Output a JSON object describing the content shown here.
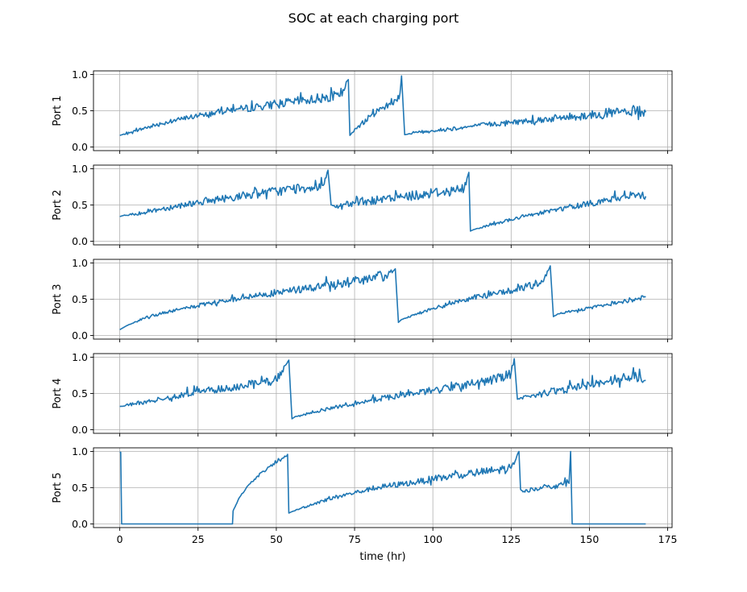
{
  "chart_data": {
    "type": "line",
    "title": "SOC at each charging port",
    "xlabel": "time (hr)",
    "xlim": [
      -8.4,
      176.4
    ],
    "xticks": [
      0,
      25,
      50,
      75,
      100,
      125,
      150,
      175
    ],
    "xtick_labels": [
      "0",
      "25",
      "50",
      "75",
      "100",
      "125",
      "150",
      "175"
    ],
    "shared_x": true,
    "grid": true,
    "line_color": "#1f77b4",
    "grid_color": "#b0b0b0",
    "panels": [
      {
        "ylabel": "Port 1",
        "ylim": [
          -0.05,
          1.05
        ],
        "yticks": [
          0.0,
          0.5,
          1.0
        ],
        "ytick_labels": [
          "0.0",
          "0.5",
          "1.0"
        ],
        "x": [
          0,
          5,
          10,
          15,
          20,
          25,
          30,
          35,
          40,
          45,
          50,
          55,
          60,
          65,
          70,
          72,
          73,
          73.5,
          76,
          80,
          84,
          88,
          89.5,
          90,
          91,
          95,
          100,
          105,
          110,
          115,
          120,
          125,
          130,
          135,
          140,
          145,
          150,
          155,
          160,
          165,
          168
        ],
        "y": [
          0.16,
          0.22,
          0.29,
          0.34,
          0.39,
          0.43,
          0.47,
          0.51,
          0.53,
          0.56,
          0.59,
          0.62,
          0.65,
          0.68,
          0.7,
          0.82,
          0.93,
          0.16,
          0.28,
          0.42,
          0.55,
          0.65,
          0.74,
          0.98,
          0.17,
          0.2,
          0.22,
          0.25,
          0.27,
          0.3,
          0.32,
          0.34,
          0.36,
          0.38,
          0.4,
          0.42,
          0.44,
          0.46,
          0.48,
          0.5,
          0.48
        ],
        "noise": [
          0,
          0.02,
          0.03,
          0.03,
          0.03,
          0.04,
          0.04,
          0.04,
          0.05,
          0.05,
          0.06,
          0.06,
          0.07,
          0.07,
          0.08,
          0.08,
          0,
          0,
          0.03,
          0.04,
          0.05,
          0.06,
          0.06,
          0,
          0,
          0.02,
          0.02,
          0.03,
          0.03,
          0.03,
          0.04,
          0.04,
          0.04,
          0.05,
          0.05,
          0.06,
          0.06,
          0.07,
          0.07,
          0.08,
          0.08
        ]
      },
      {
        "ylabel": "Port 2",
        "ylim": [
          -0.05,
          1.05
        ],
        "yticks": [
          0.0,
          0.5,
          1.0
        ],
        "ytick_labels": [
          "0.0",
          "0.5",
          "1.0"
        ],
        "x": [
          0,
          5,
          10,
          15,
          20,
          25,
          30,
          35,
          40,
          45,
          50,
          55,
          60,
          65,
          66.5,
          67.5,
          70,
          75,
          80,
          85,
          90,
          95,
          100,
          105,
          110,
          111.5,
          112,
          113,
          118,
          125,
          130,
          135,
          140,
          145,
          150,
          155,
          160,
          165,
          168
        ],
        "y": [
          0.34,
          0.38,
          0.42,
          0.46,
          0.5,
          0.54,
          0.57,
          0.6,
          0.63,
          0.66,
          0.69,
          0.72,
          0.74,
          0.77,
          0.98,
          0.5,
          0.48,
          0.52,
          0.55,
          0.58,
          0.61,
          0.64,
          0.67,
          0.69,
          0.72,
          0.95,
          0.14,
          0.16,
          0.22,
          0.3,
          0.35,
          0.4,
          0.44,
          0.48,
          0.52,
          0.56,
          0.6,
          0.64,
          0.62
        ],
        "noise": [
          0,
          0.03,
          0.03,
          0.04,
          0.04,
          0.05,
          0.05,
          0.05,
          0.06,
          0.06,
          0.07,
          0.07,
          0.07,
          0.08,
          0,
          0,
          0.05,
          0.05,
          0.06,
          0.06,
          0.06,
          0.07,
          0.07,
          0.07,
          0.08,
          0,
          0,
          0,
          0.02,
          0.02,
          0.03,
          0.03,
          0.03,
          0.04,
          0.04,
          0.05,
          0.05,
          0.06,
          0.06
        ]
      },
      {
        "ylabel": "Port 3",
        "ylim": [
          -0.05,
          1.05
        ],
        "yticks": [
          0.0,
          0.5,
          1.0
        ],
        "ytick_labels": [
          "0.0",
          "0.5",
          "1.0"
        ],
        "x": [
          0,
          2,
          5,
          10,
          15,
          20,
          25,
          30,
          35,
          40,
          45,
          50,
          55,
          60,
          65,
          70,
          75,
          80,
          85,
          88,
          89,
          90,
          95,
          100,
          105,
          110,
          115,
          120,
          125,
          130,
          135,
          137.5,
          138.5,
          140,
          145,
          150,
          155,
          160,
          165,
          168
        ],
        "y": [
          0.08,
          0.13,
          0.19,
          0.27,
          0.32,
          0.37,
          0.41,
          0.45,
          0.49,
          0.52,
          0.56,
          0.59,
          0.62,
          0.65,
          0.68,
          0.71,
          0.74,
          0.78,
          0.83,
          0.92,
          0.18,
          0.22,
          0.3,
          0.37,
          0.43,
          0.49,
          0.54,
          0.58,
          0.62,
          0.67,
          0.74,
          0.96,
          0.26,
          0.3,
          0.34,
          0.38,
          0.42,
          0.46,
          0.5,
          0.53
        ],
        "noise": [
          0,
          0,
          0.01,
          0.02,
          0.02,
          0.02,
          0.03,
          0.03,
          0.03,
          0.04,
          0.04,
          0.05,
          0.05,
          0.06,
          0.06,
          0.07,
          0.07,
          0.07,
          0.08,
          0,
          0,
          0,
          0.02,
          0.02,
          0.03,
          0.03,
          0.04,
          0.04,
          0.05,
          0.05,
          0.06,
          0,
          0,
          0.01,
          0.02,
          0.02,
          0.02,
          0.03,
          0.03,
          0.03
        ]
      },
      {
        "ylabel": "Port 4",
        "ylim": [
          -0.05,
          1.05
        ],
        "yticks": [
          0.0,
          0.5,
          1.0
        ],
        "ytick_labels": [
          "0.0",
          "0.5",
          "1.0"
        ],
        "x": [
          0,
          5,
          10,
          15,
          20,
          25,
          30,
          35,
          40,
          45,
          50,
          54,
          55,
          56,
          60,
          65,
          70,
          75,
          80,
          85,
          90,
          95,
          100,
          105,
          110,
          115,
          120,
          125,
          126,
          127,
          130,
          135,
          140,
          145,
          150,
          155,
          160,
          165,
          168
        ],
        "y": [
          0.32,
          0.36,
          0.4,
          0.44,
          0.48,
          0.52,
          0.55,
          0.58,
          0.61,
          0.64,
          0.68,
          0.96,
          0.15,
          0.18,
          0.22,
          0.27,
          0.32,
          0.37,
          0.41,
          0.44,
          0.47,
          0.51,
          0.55,
          0.58,
          0.62,
          0.66,
          0.7,
          0.78,
          0.98,
          0.42,
          0.46,
          0.5,
          0.54,
          0.58,
          0.62,
          0.66,
          0.7,
          0.74,
          0.68
        ],
        "noise": [
          0,
          0.03,
          0.03,
          0.04,
          0.04,
          0.05,
          0.05,
          0.05,
          0.06,
          0.06,
          0.07,
          0,
          0,
          0,
          0.02,
          0.02,
          0.03,
          0.03,
          0.03,
          0.04,
          0.04,
          0.04,
          0.05,
          0.05,
          0.06,
          0.06,
          0.07,
          0.07,
          0,
          0,
          0.04,
          0.05,
          0.05,
          0.06,
          0.06,
          0.07,
          0.07,
          0.08,
          0.08
        ]
      },
      {
        "ylabel": "Port 5",
        "ylim": [
          -0.05,
          1.05
        ],
        "yticks": [
          0.0,
          0.5,
          1.0
        ],
        "ytick_labels": [
          "0.0",
          "0.5",
          "1.0"
        ],
        "x": [
          0,
          0.3,
          0.6,
          1,
          36,
          36.2,
          38,
          41,
          44,
          47,
          50,
          53,
          53.6,
          54,
          55,
          60,
          65,
          70,
          75,
          80,
          85,
          90,
          95,
          100,
          105,
          110,
          115,
          120,
          125,
          127.5,
          128,
          128.5,
          130,
          135,
          140,
          143.5,
          144,
          144.5,
          145,
          150,
          155,
          160,
          165,
          168
        ],
        "y": [
          0.99,
          0.99,
          0.0,
          0.0,
          0.0,
          0.18,
          0.35,
          0.53,
          0.66,
          0.76,
          0.84,
          0.93,
          0.96,
          0.15,
          0.17,
          0.25,
          0.32,
          0.38,
          0.43,
          0.48,
          0.52,
          0.55,
          0.58,
          0.62,
          0.65,
          0.68,
          0.71,
          0.74,
          0.77,
          1.0,
          0.48,
          0.46,
          0.47,
          0.5,
          0.53,
          0.56,
          1.0,
          0.0,
          0.0,
          0.0,
          0.0,
          0.0,
          0.0,
          0.0
        ],
        "noise": [
          0,
          0,
          0,
          0,
          0,
          0,
          0.01,
          0.01,
          0.02,
          0.02,
          0.02,
          0.02,
          0,
          0,
          0,
          0.02,
          0.02,
          0.03,
          0.03,
          0.03,
          0.04,
          0.04,
          0.04,
          0.05,
          0.05,
          0.06,
          0.06,
          0.06,
          0.07,
          0,
          0,
          0.03,
          0.03,
          0.03,
          0.04,
          0.04,
          0,
          0,
          0,
          0,
          0,
          0,
          0,
          0
        ]
      }
    ]
  }
}
